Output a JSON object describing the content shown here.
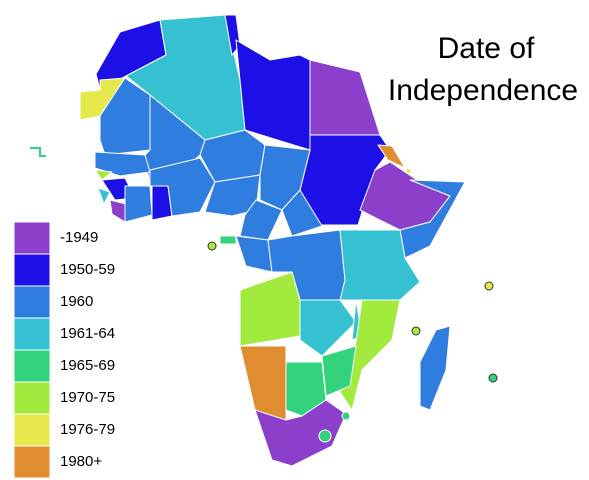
{
  "title": [
    "Date of",
    "Independence"
  ],
  "legend": [
    {
      "label": "-1949",
      "color": "#8c3fcb"
    },
    {
      "label": "1950-59",
      "color": "#1d10e6"
    },
    {
      "label": "1960",
      "color": "#2f7ddf"
    },
    {
      "label": "1961-64",
      "color": "#36c1d2"
    },
    {
      "label": "1965-69",
      "color": "#33d27c"
    },
    {
      "label": "1970-75",
      "color": "#a2ea3d"
    },
    {
      "label": "1976-79",
      "color": "#e6e84c"
    },
    {
      "label": "1980+",
      "color": "#e08d31"
    }
  ]
}
